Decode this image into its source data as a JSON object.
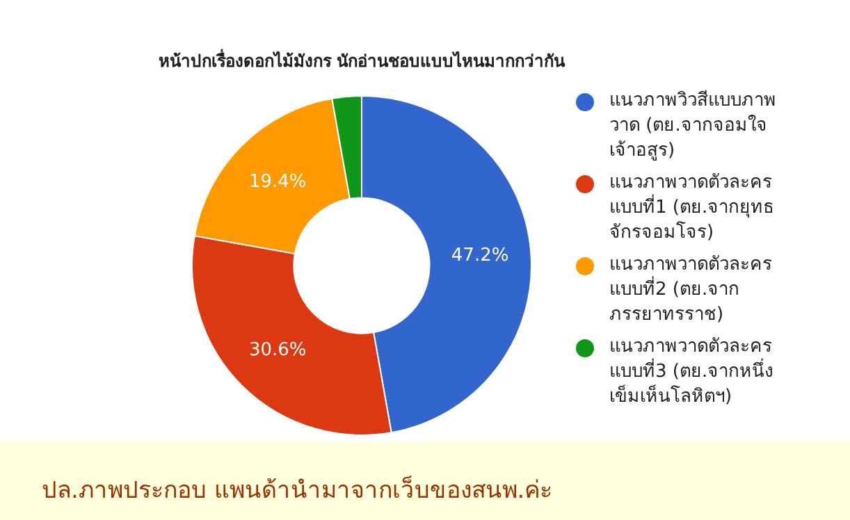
{
  "chart_data": {
    "type": "donut",
    "title": "หน้าปกเรื่องดอกไม้มังกร นักอ่านชอบแบบไหนมากกว่ากัน",
    "categories": [
      "แนวภาพวิวสีแบบภาพวาด (ตย.จากจอมใจเจ้าอสูร)",
      "แนวภาพวาดตัวละครแบบที่1 (ตย.จากยุทธจักรจอมโจร)",
      "แนวภาพวาดตัวละครแบบที่2 (ตย.จากภรรยาทรราช)",
      "แนวภาพวาดตัวละครแบบที่3 (ตย.จากหนึ่งเข็มเห็นโลหิตฯ)"
    ],
    "values": [
      47.2,
      30.6,
      19.4,
      2.8
    ],
    "value_labels": [
      "47.2%",
      "30.6%",
      "19.4%",
      null
    ],
    "colors": [
      "#3366cc",
      "#dc3912",
      "#ff9900",
      "#109618"
    ],
    "legend": "right",
    "annotations": [
      "ปล.ภาพประกอบ แพนด้านำมาจากเว็บของสนพ.ค่ะ"
    ]
  }
}
